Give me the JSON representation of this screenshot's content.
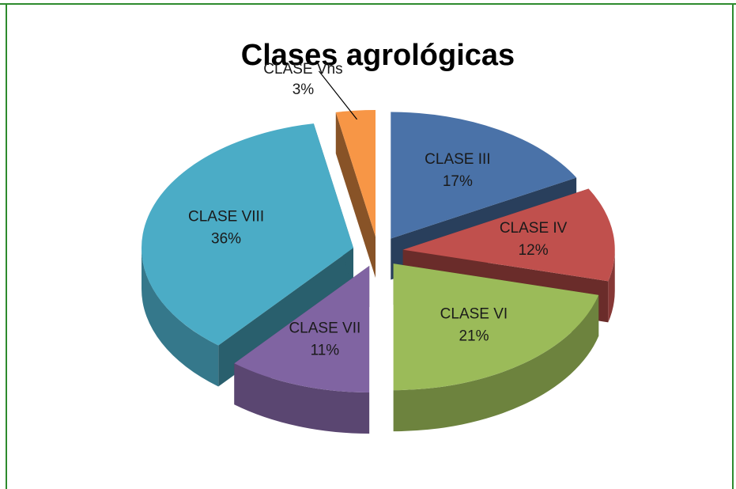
{
  "chart_data": {
    "type": "pie",
    "title": "Clases agrológicas",
    "categories": [
      "CLASE III",
      "CLASE IV",
      "CLASE VI",
      "CLASE VII",
      "CLASE  VIII",
      "CLASE Vhs"
    ],
    "values": [
      17,
      12,
      21,
      11,
      36,
      3
    ],
    "value_labels": [
      "17%",
      "12%",
      "21%",
      "11%",
      "36%",
      "3%"
    ],
    "colors": [
      "#4a72a8",
      "#c0504d",
      "#9bbb59",
      "#8064a2",
      "#4bacc6",
      "#f79646"
    ]
  }
}
